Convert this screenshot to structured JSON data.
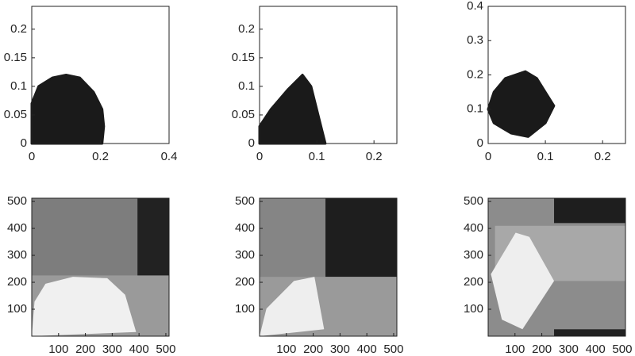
{
  "chart_data": [
    {
      "type": "area",
      "color": "#1a1a1a",
      "x": [
        0,
        0,
        0.02,
        0.06,
        0.1,
        0.14,
        0.18,
        0.205,
        0.21,
        0.205
      ],
      "y": [
        0,
        0.07,
        0.1,
        0.115,
        0.12,
        0.115,
        0.09,
        0.06,
        0.03,
        0
      ],
      "xlim": [
        0,
        0.4
      ],
      "ylim": [
        0,
        0.24
      ],
      "xticks": [
        0,
        0.2,
        0.4
      ],
      "yticks": [
        0,
        0.05,
        0.1,
        0.15,
        0.2
      ]
    },
    {
      "type": "area",
      "color": "#1a1a1a",
      "x": [
        0,
        0,
        0.02,
        0.05,
        0.075,
        0.09,
        0.1,
        0.11,
        0.115
      ],
      "y": [
        0,
        0.03,
        0.06,
        0.095,
        0.12,
        0.1,
        0.06,
        0.02,
        0
      ],
      "xlim": [
        0,
        0.24
      ],
      "ylim": [
        0,
        0.24
      ],
      "xticks": [
        0,
        0.1,
        0.2
      ],
      "yticks": [
        0,
        0.05,
        0.1,
        0.15,
        0.2
      ]
    },
    {
      "type": "area",
      "color": "#1a1a1a",
      "x": [
        0,
        0.01,
        0.03,
        0.065,
        0.085,
        0.1,
        0.115,
        0.1,
        0.07,
        0.04,
        0.01
      ],
      "y": [
        0.1,
        0.15,
        0.19,
        0.21,
        0.19,
        0.15,
        0.11,
        0.06,
        0.02,
        0.03,
        0.06
      ],
      "xlim": [
        0,
        0.24
      ],
      "ylim": [
        0,
        0.4
      ],
      "xticks": [
        0,
        0.1,
        0.2
      ],
      "yticks": [
        0,
        0.1,
        0.2,
        0.3,
        0.4
      ]
    },
    {
      "type": "image",
      "xlim": [
        0,
        512
      ],
      "ylim": [
        0,
        512
      ],
      "xticks": [
        100,
        200,
        300,
        400,
        500
      ],
      "yticks": [
        100,
        200,
        300,
        400,
        500
      ]
    },
    {
      "type": "image",
      "xlim": [
        0,
        512
      ],
      "ylim": [
        0,
        512
      ],
      "xticks": [
        100,
        200,
        300,
        400,
        500
      ],
      "yticks": [
        100,
        200,
        300,
        400,
        500
      ]
    },
    {
      "type": "image",
      "xlim": [
        0,
        512
      ],
      "ylim": [
        0,
        512
      ],
      "xticks": [
        100,
        200,
        300,
        400,
        500
      ],
      "yticks": [
        100,
        200,
        300,
        400,
        500
      ]
    }
  ]
}
